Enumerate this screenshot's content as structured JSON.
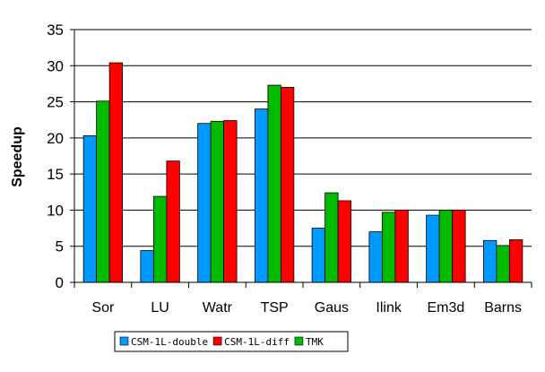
{
  "chart_data": {
    "type": "bar",
    "categories": [
      "Sor",
      "LU",
      "Watr",
      "TSP",
      "Gaus",
      "Ilink",
      "Em3d",
      "Barns"
    ],
    "series": [
      {
        "name": "CSM-1L-double",
        "color": "#0099ff",
        "values": [
          20.3,
          4.4,
          22.0,
          24.0,
          7.5,
          7.0,
          9.3,
          5.8
        ]
      },
      {
        "name": "TMK",
        "color": "#00bb00",
        "values": [
          25.1,
          11.9,
          22.3,
          27.3,
          12.4,
          9.7,
          10.0,
          5.1
        ]
      },
      {
        "name": "CSM-1L-diff",
        "color": "#ff0000",
        "values": [
          30.4,
          16.8,
          22.4,
          27.0,
          11.3,
          10.0,
          10.0,
          5.9
        ]
      }
    ],
    "legend_order": [
      "CSM-1L-double",
      "CSM-1L-diff",
      "TMK"
    ],
    "xlabel": "",
    "ylabel": "Speedup",
    "ylim": [
      0,
      35
    ],
    "yticks": [
      0,
      5,
      10,
      15,
      20,
      25,
      30,
      35
    ],
    "grid": true,
    "legend_position": "bottom-center"
  }
}
